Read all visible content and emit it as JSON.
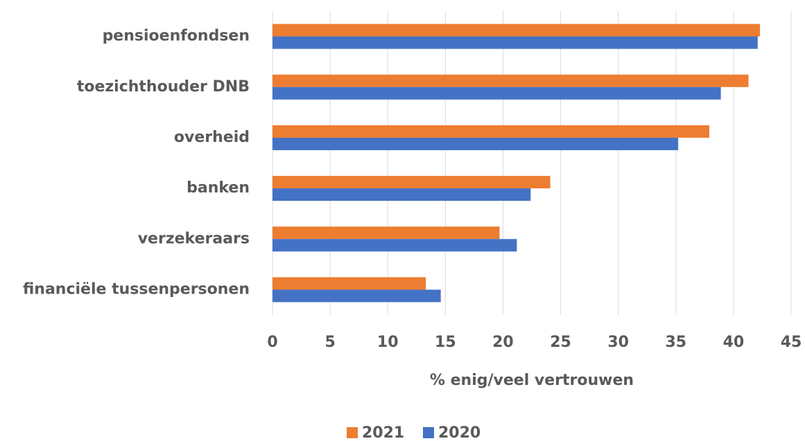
{
  "chart_data": {
    "type": "barh",
    "categories": [
      "pensioenfondsen",
      "toezichthouder DNB",
      "overheid",
      "banken",
      "verzekeraars",
      "financiële tussenpersonen"
    ],
    "series": [
      {
        "name": "2021",
        "color": "#ed7d31",
        "values": [
          42.3,
          41.3,
          37.9,
          24.1,
          19.7,
          13.3
        ]
      },
      {
        "name": "2020",
        "color": "#4472c4",
        "values": [
          42.1,
          38.9,
          35.2,
          22.4,
          21.2,
          14.6
        ]
      }
    ],
    "x_label": "% enig/veel vertrouwen",
    "xlim": [
      0,
      45
    ],
    "xticks": [
      0,
      5,
      10,
      15,
      20,
      25,
      30,
      35,
      40,
      45
    ],
    "grid": true,
    "legend": "bottom"
  }
}
